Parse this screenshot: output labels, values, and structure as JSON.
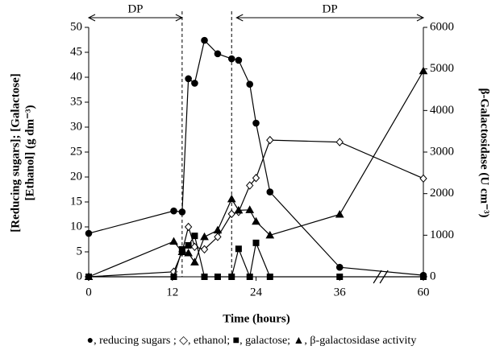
{
  "chart_data": {
    "type": "line",
    "x_label": "Time (hours)",
    "y_label": [
      "[Reducing sugars]; [Galactose]",
      "[Ethanol] (g dm⁻³)"
    ],
    "y2_label": "β-Galactosidase (U cm⁻³)",
    "caption": "●, reducing sugars ; ◇, ethanol;  ■, galactose; ▲, β-galactosidase activity",
    "xlim": [
      0,
      60
    ],
    "xticks": [
      0,
      12,
      24,
      36,
      60
    ],
    "xbreak": [
      36,
      60
    ],
    "ylim": [
      0,
      50
    ],
    "yticks": [
      0,
      5,
      10,
      15,
      20,
      25,
      30,
      35,
      40,
      45,
      50
    ],
    "y2lim": [
      0,
      6000
    ],
    "y2ticks": [
      0,
      1000,
      2000,
      3000,
      4000,
      5000,
      6000
    ],
    "phase_lines": [
      13.4,
      20.5
    ],
    "annotations": [
      {
        "text": "DP",
        "x": [
          0,
          13.4
        ]
      },
      {
        "text": "DP",
        "x": [
          21.2,
          60
        ]
      }
    ],
    "x": [
      0,
      12.2,
      13.4,
      14.3,
      15.2,
      16.6,
      18.5,
      20.5,
      21.5,
      23.1,
      24,
      26,
      36,
      60
    ],
    "series": [
      {
        "marker": "circle",
        "color": "#000",
        "values": [
          8.7,
          13.2,
          13,
          39.7,
          38.8,
          47.4,
          44.7,
          43.7,
          43.4,
          38.6,
          30.8,
          17,
          1.9,
          0.3
        ]
      },
      {
        "marker": "diamond",
        "color": "#000",
        "values": [
          0,
          1,
          5,
          10,
          6,
          5.5,
          8,
          12.6,
          13,
          18.3,
          19.8,
          27.4,
          27,
          19.7
        ]
      },
      {
        "marker": "square",
        "color": "#000",
        "values": [
          0,
          0,
          5.5,
          6.3,
          8.2,
          0,
          0,
          0,
          5.6,
          0,
          6.8,
          0,
          0,
          0
        ]
      },
      {
        "marker": "triangle",
        "color": "#000",
        "axis": "y2",
        "values": [
          0,
          850,
          600,
          570,
          350,
          960,
          1120,
          1870,
          1600,
          1610,
          1330,
          1000,
          1500,
          4950
        ]
      }
    ]
  }
}
